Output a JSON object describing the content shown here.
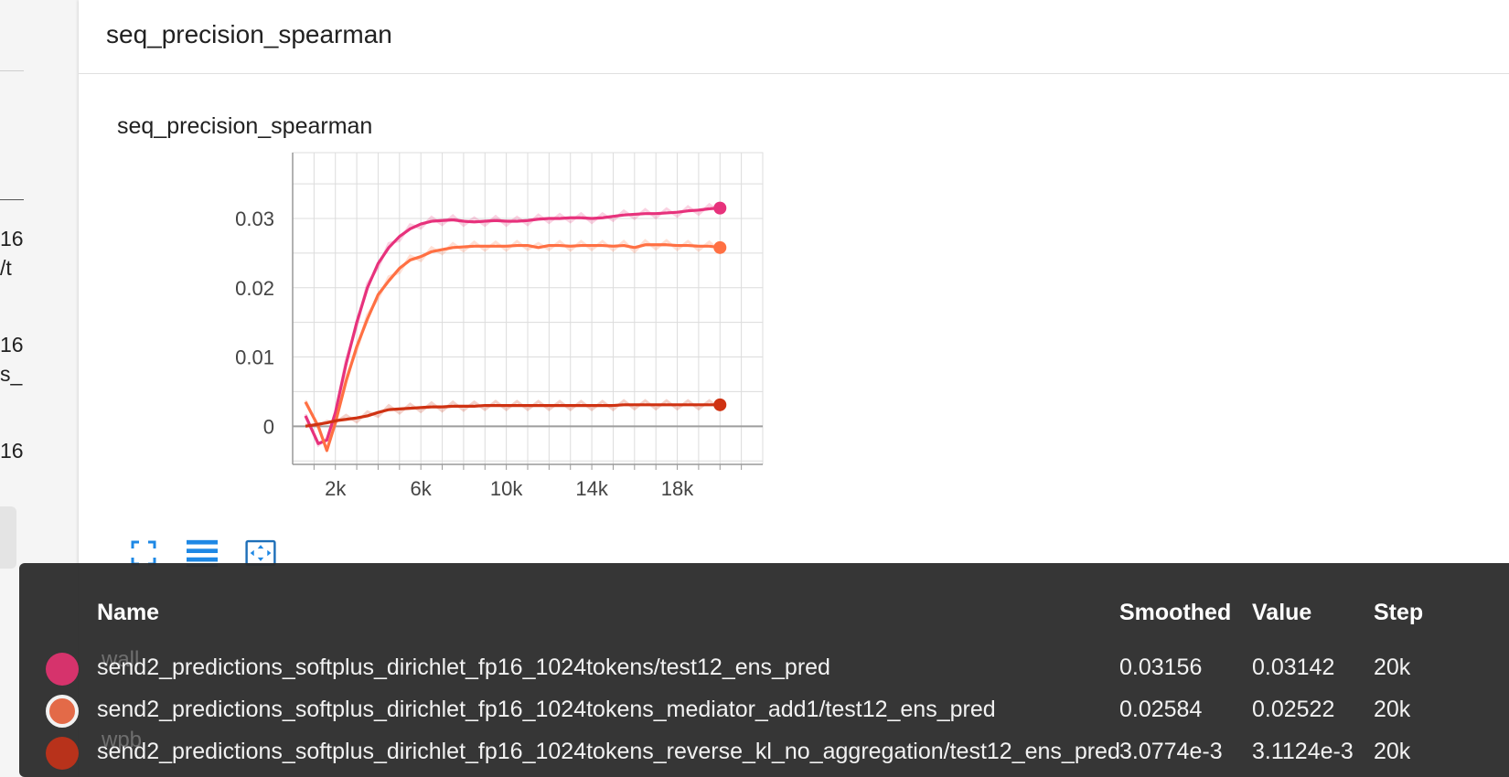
{
  "sidebar": {
    "fragments": [
      "16",
      "/t",
      "16",
      "s_",
      "16"
    ]
  },
  "group": {
    "title": "seq_precision_spearman"
  },
  "card": {
    "title": "seq_precision_spearman",
    "buttons": [
      {
        "name": "expand-chart",
        "icon": "fullscreen-icon"
      },
      {
        "name": "toggle-log-scale",
        "icon": "list-lines-icon"
      },
      {
        "name": "fit-domain",
        "icon": "fit-to-data-icon"
      }
    ]
  },
  "chart_data": {
    "type": "line",
    "title": "",
    "xlabel": "",
    "ylabel": "",
    "xlim": [
      0,
      22000
    ],
    "ylim": [
      -0.0055,
      0.0395
    ],
    "xticks": [
      "2k",
      "6k",
      "10k",
      "14k",
      "18k"
    ],
    "xtick_values": [
      2000,
      6000,
      10000,
      14000,
      18000
    ],
    "yticks": [
      "0",
      "0.01",
      "0.02",
      "0.03"
    ],
    "ytick_values": [
      0,
      0.01,
      0.02,
      0.03
    ],
    "grid": true,
    "x": [
      600,
      1200,
      1600,
      2000,
      2500,
      3000,
      3500,
      4000,
      4500,
      5000,
      5500,
      6000,
      6500,
      7000,
      7500,
      8000,
      8500,
      9000,
      9500,
      10000,
      10500,
      11000,
      11500,
      12000,
      12500,
      13000,
      13500,
      14000,
      14500,
      15000,
      15500,
      16000,
      16500,
      17000,
      17500,
      18000,
      18500,
      19000,
      19500,
      20000
    ],
    "series": [
      {
        "name": "send2_predictions_softplus_dirichlet_fp16_1024tokens/test12_ens_pred",
        "color": "#e7327c",
        "values": [
          0.0015,
          -0.0025,
          -0.002,
          0.002,
          0.009,
          0.015,
          0.02,
          0.0235,
          0.0258,
          0.0274,
          0.0285,
          0.0292,
          0.0296,
          0.0297,
          0.0298,
          0.0296,
          0.0295,
          0.0296,
          0.0297,
          0.0296,
          0.0296,
          0.0297,
          0.0299,
          0.03,
          0.03,
          0.0301,
          0.0301,
          0.03,
          0.0301,
          0.0303,
          0.0305,
          0.0306,
          0.0307,
          0.0307,
          0.0308,
          0.0309,
          0.0311,
          0.0312,
          0.0314,
          0.0315
        ]
      },
      {
        "name": "send2_predictions_softplus_dirichlet_fp16_1024tokens_mediator_add1/test12_ens_pred",
        "color": "#ff7043",
        "values": [
          0.0035,
          0.0,
          -0.0035,
          0.0005,
          0.0065,
          0.0115,
          0.0155,
          0.019,
          0.021,
          0.0228,
          0.024,
          0.0245,
          0.0252,
          0.0255,
          0.0258,
          0.0259,
          0.026,
          0.026,
          0.026,
          0.026,
          0.0261,
          0.0261,
          0.0258,
          0.0261,
          0.0261,
          0.026,
          0.0261,
          0.0261,
          0.0261,
          0.026,
          0.0261,
          0.0258,
          0.0262,
          0.0262,
          0.0262,
          0.0261,
          0.0261,
          0.026,
          0.026,
          0.0258
        ]
      },
      {
        "name": "send2_predictions_softplus_dirichlet_fp16_1024tokens_reverse_kl_no_aggregation/test12_ens_pred",
        "color": "#cf3212",
        "values": [
          0.0,
          0.0003,
          0.0005,
          0.0008,
          0.001,
          0.0012,
          0.0015,
          0.002,
          0.0024,
          0.0025,
          0.0026,
          0.0027,
          0.0028,
          0.0028,
          0.0029,
          0.0029,
          0.0029,
          0.003,
          0.003,
          0.003,
          0.003,
          0.003,
          0.003,
          0.003,
          0.003,
          0.003,
          0.003,
          0.003,
          0.003,
          0.003,
          0.0031,
          0.0031,
          0.0031,
          0.0031,
          0.0031,
          0.0031,
          0.0031,
          0.0031,
          0.0031,
          0.0031
        ]
      }
    ]
  },
  "tooltip": {
    "headers": {
      "name": "Name",
      "smoothed": "Smoothed",
      "value": "Value",
      "step": "Step"
    },
    "rows": [
      {
        "name": "send2_predictions_softplus_dirichlet_fp16_1024tokens/test12_ens_pred",
        "smoothed": "0.03156",
        "value": "0.03142",
        "step": "20k",
        "color": "#d6336c",
        "ring": false
      },
      {
        "name": "send2_predictions_softplus_dirichlet_fp16_1024tokens_mediator_add1/test12_ens_pred",
        "smoothed": "0.02584",
        "value": "0.02522",
        "step": "20k",
        "color": "#e36a48",
        "ring": true
      },
      {
        "name": "send2_predictions_softplus_dirichlet_fp16_1024tokens_reverse_kl_no_aggregation/test12_ens_pred",
        "smoothed": "3.0774e-3",
        "value": "3.1124e-3",
        "step": "20k",
        "color": "#b8321b",
        "ring": false
      }
    ],
    "background_text": [
      "wall",
      "wpb"
    ]
  }
}
